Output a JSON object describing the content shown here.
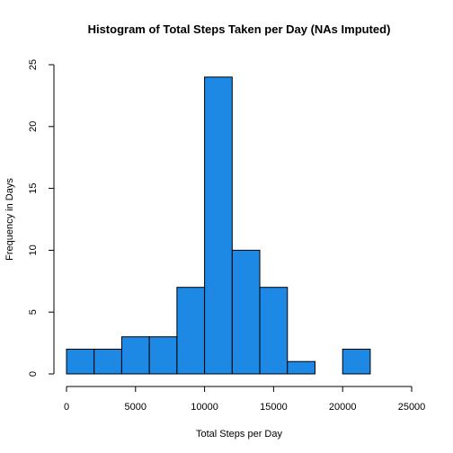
{
  "chart_data": {
    "type": "bar",
    "title": "Histogram of Total Steps Taken per Day (NAs Imputed)",
    "xlabel": "Total Steps per Day",
    "ylabel": "Frequency in Days",
    "bar_color": "#1e88e5",
    "xlim": [
      0,
      25000
    ],
    "ylim": [
      0,
      25
    ],
    "x_ticks": [
      "0",
      "5000",
      "10000",
      "15000",
      "20000",
      "25000"
    ],
    "y_ticks": [
      "0",
      "5",
      "10",
      "15",
      "20",
      "25"
    ],
    "bins": [
      {
        "start": 0,
        "end": 2000,
        "count": 2
      },
      {
        "start": 2000,
        "end": 4000,
        "count": 2
      },
      {
        "start": 4000,
        "end": 6000,
        "count": 3
      },
      {
        "start": 6000,
        "end": 8000,
        "count": 3
      },
      {
        "start": 8000,
        "end": 10000,
        "count": 7
      },
      {
        "start": 10000,
        "end": 12000,
        "count": 24
      },
      {
        "start": 12000,
        "end": 14000,
        "count": 10
      },
      {
        "start": 14000,
        "end": 16000,
        "count": 7
      },
      {
        "start": 16000,
        "end": 18000,
        "count": 1
      },
      {
        "start": 18000,
        "end": 20000,
        "count": 0
      },
      {
        "start": 20000,
        "end": 22000,
        "count": 2
      }
    ]
  }
}
